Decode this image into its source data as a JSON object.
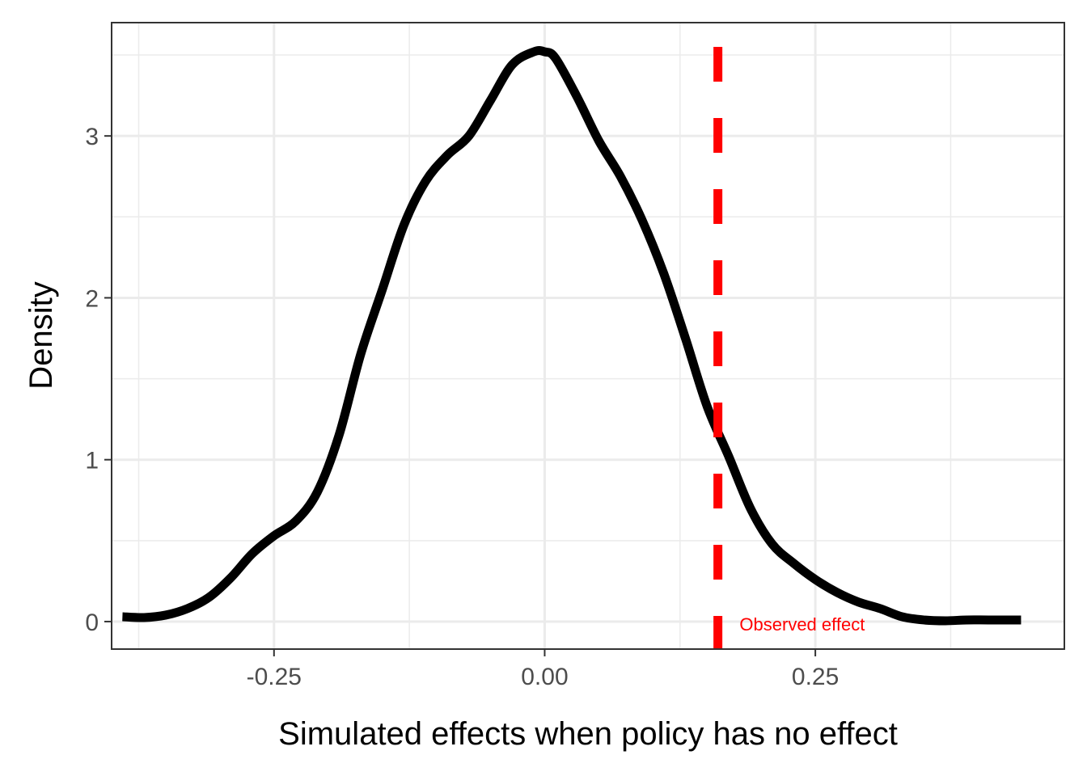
{
  "chart_data": {
    "type": "line",
    "xlabel": "Simulated effects when policy has no effect",
    "ylabel": "Density",
    "xlim": [
      -0.4,
      0.48
    ],
    "ylim": [
      -0.17,
      3.7
    ],
    "x_ticks": [
      -0.25,
      0.0,
      0.25
    ],
    "x_tick_labels": [
      "-0.25",
      "0.00",
      "0.25"
    ],
    "y_ticks": [
      0,
      1,
      2,
      3
    ],
    "y_tick_labels": [
      "0",
      "1",
      "2",
      "3"
    ],
    "grid": true,
    "series": [
      {
        "color": "#000000",
        "points": [
          [
            -0.39,
            0.03
          ],
          [
            -0.37,
            0.025
          ],
          [
            -0.35,
            0.04
          ],
          [
            -0.33,
            0.08
          ],
          [
            -0.31,
            0.15
          ],
          [
            -0.29,
            0.27
          ],
          [
            -0.27,
            0.42
          ],
          [
            -0.25,
            0.53
          ],
          [
            -0.23,
            0.62
          ],
          [
            -0.21,
            0.8
          ],
          [
            -0.19,
            1.15
          ],
          [
            -0.17,
            1.65
          ],
          [
            -0.15,
            2.05
          ],
          [
            -0.13,
            2.45
          ],
          [
            -0.11,
            2.72
          ],
          [
            -0.09,
            2.88
          ],
          [
            -0.07,
            3.0
          ],
          [
            -0.05,
            3.22
          ],
          [
            -0.03,
            3.44
          ],
          [
            -0.01,
            3.52
          ],
          [
            0.0,
            3.52
          ],
          [
            0.01,
            3.48
          ],
          [
            0.03,
            3.24
          ],
          [
            0.05,
            2.97
          ],
          [
            0.07,
            2.75
          ],
          [
            0.09,
            2.48
          ],
          [
            0.11,
            2.15
          ],
          [
            0.13,
            1.75
          ],
          [
            0.15,
            1.33
          ],
          [
            0.17,
            1.02
          ],
          [
            0.19,
            0.7
          ],
          [
            0.21,
            0.48
          ],
          [
            0.23,
            0.36
          ],
          [
            0.25,
            0.26
          ],
          [
            0.27,
            0.18
          ],
          [
            0.29,
            0.12
          ],
          [
            0.31,
            0.08
          ],
          [
            0.33,
            0.03
          ],
          [
            0.35,
            0.01
          ],
          [
            0.37,
            0.005
          ],
          [
            0.39,
            0.01
          ],
          [
            0.41,
            0.01
          ],
          [
            0.44,
            0.01
          ]
        ]
      }
    ],
    "reference_line": {
      "x": 0.16,
      "color": "#ff0000",
      "style": "dashed"
    },
    "annotation": {
      "text": "Observed effect",
      "x": 0.18,
      "y": 0.0,
      "color": "#ff0000"
    }
  }
}
